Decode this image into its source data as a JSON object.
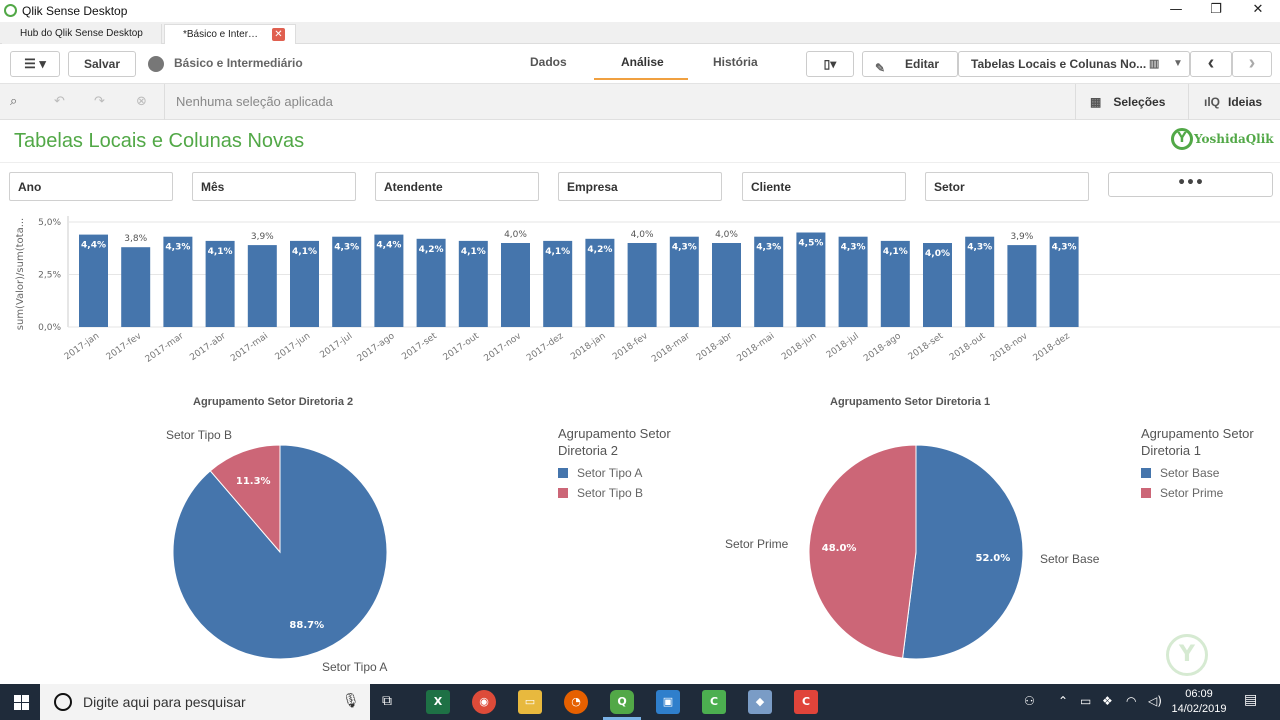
{
  "window": {
    "title": "Qlik Sense Desktop",
    "minimize": "—",
    "maximize": "❐",
    "close": "✕"
  },
  "tabs": [
    {
      "label": "Hub do Qlik Sense Desktop"
    },
    {
      "label": "*Básico e Inter…",
      "close": "✕"
    }
  ],
  "toolbar": {
    "menu": "☰ ▾",
    "save": "Salvar",
    "app_name": "Básico e Intermediário",
    "nav": [
      "Dados",
      "Análise",
      "História"
    ],
    "bookmark": "▯▾",
    "edit": "Editar",
    "sheet_selector": "Tabelas Locais e Colunas No...",
    "prev": "‹",
    "next": "›"
  },
  "selection_bar": {
    "status": "Nenhuma seleção aplicada",
    "selections": "Seleções",
    "insights": "Ideias"
  },
  "sheet": {
    "title": "Tabelas Locais e Colunas Novas",
    "logo": "YoshidaQlik",
    "filters": [
      "Ano",
      "Mês",
      "Atendente",
      "Empresa",
      "Cliente",
      "Setor"
    ],
    "more": "•••"
  },
  "colors": {
    "blue": "#4575ac",
    "red": "#cc6677",
    "green": "#52a847"
  },
  "chart_data": [
    {
      "type": "bar",
      "ylabel": "sum(Valor)/sum(tota...",
      "ylim": [
        0,
        5.0
      ],
      "yticks": [
        "0,0%",
        "2,5%",
        "5,0%"
      ],
      "categories": [
        "2017-jan",
        "2017-fev",
        "2017-mar",
        "2017-abr",
        "2017-mai",
        "2017-jun",
        "2017-jul",
        "2017-ago",
        "2017-set",
        "2017-out",
        "2017-nov",
        "2017-dez",
        "2018-jan",
        "2018-fev",
        "2018-mar",
        "2018-abr",
        "2018-mai",
        "2018-jun",
        "2018-jul",
        "2018-ago",
        "2018-set",
        "2018-out",
        "2018-nov",
        "2018-dez"
      ],
      "values": [
        4.4,
        3.8,
        4.3,
        4.1,
        3.9,
        4.1,
        4.3,
        4.4,
        4.2,
        4.1,
        4.0,
        4.1,
        4.2,
        4.0,
        4.3,
        4.0,
        4.3,
        4.5,
        4.3,
        4.1,
        4.0,
        4.3,
        3.9,
        4.3
      ],
      "labels": [
        "4,4%",
        "3,8%",
        "4,3%",
        "4,1%",
        "3,9%",
        "4,1%",
        "4,3%",
        "4,4%",
        "4,2%",
        "4,1%",
        "4,0%",
        "4,1%",
        "4,2%",
        "4,0%",
        "4,3%",
        "4,0%",
        "4,3%",
        "4,5%",
        "4,3%",
        "4,1%",
        "4,0%",
        "4,3%",
        "3,9%",
        "4,3%"
      ],
      "label_inside": [
        true,
        false,
        true,
        true,
        false,
        true,
        true,
        true,
        true,
        true,
        false,
        true,
        true,
        false,
        true,
        false,
        true,
        true,
        true,
        true,
        true,
        true,
        false,
        true
      ],
      "grid": true
    },
    {
      "type": "pie",
      "title": "Agrupamento Setor Diretoria 2",
      "legend_title": "Agrupamento Setor Diretoria 2",
      "slices": [
        {
          "name": "Setor Tipo A",
          "value": 88.7,
          "label": "88.7%",
          "color": "#4575ac"
        },
        {
          "name": "Setor Tipo B",
          "value": 11.3,
          "label": "11.3%",
          "color": "#cc6677"
        }
      ]
    },
    {
      "type": "pie",
      "title": "Agrupamento Setor Diretoria 1",
      "legend_title": "Agrupamento Setor Diretoria 1",
      "slices": [
        {
          "name": "Setor Base",
          "value": 52.0,
          "label": "52.0%",
          "color": "#4575ac"
        },
        {
          "name": "Setor Prime",
          "value": 48.0,
          "label": "48.0%",
          "color": "#cc6677"
        }
      ]
    }
  ],
  "taskbar": {
    "search_placeholder": "Digite aqui para pesquisar",
    "time": "06:09",
    "date": "14/02/2019"
  }
}
